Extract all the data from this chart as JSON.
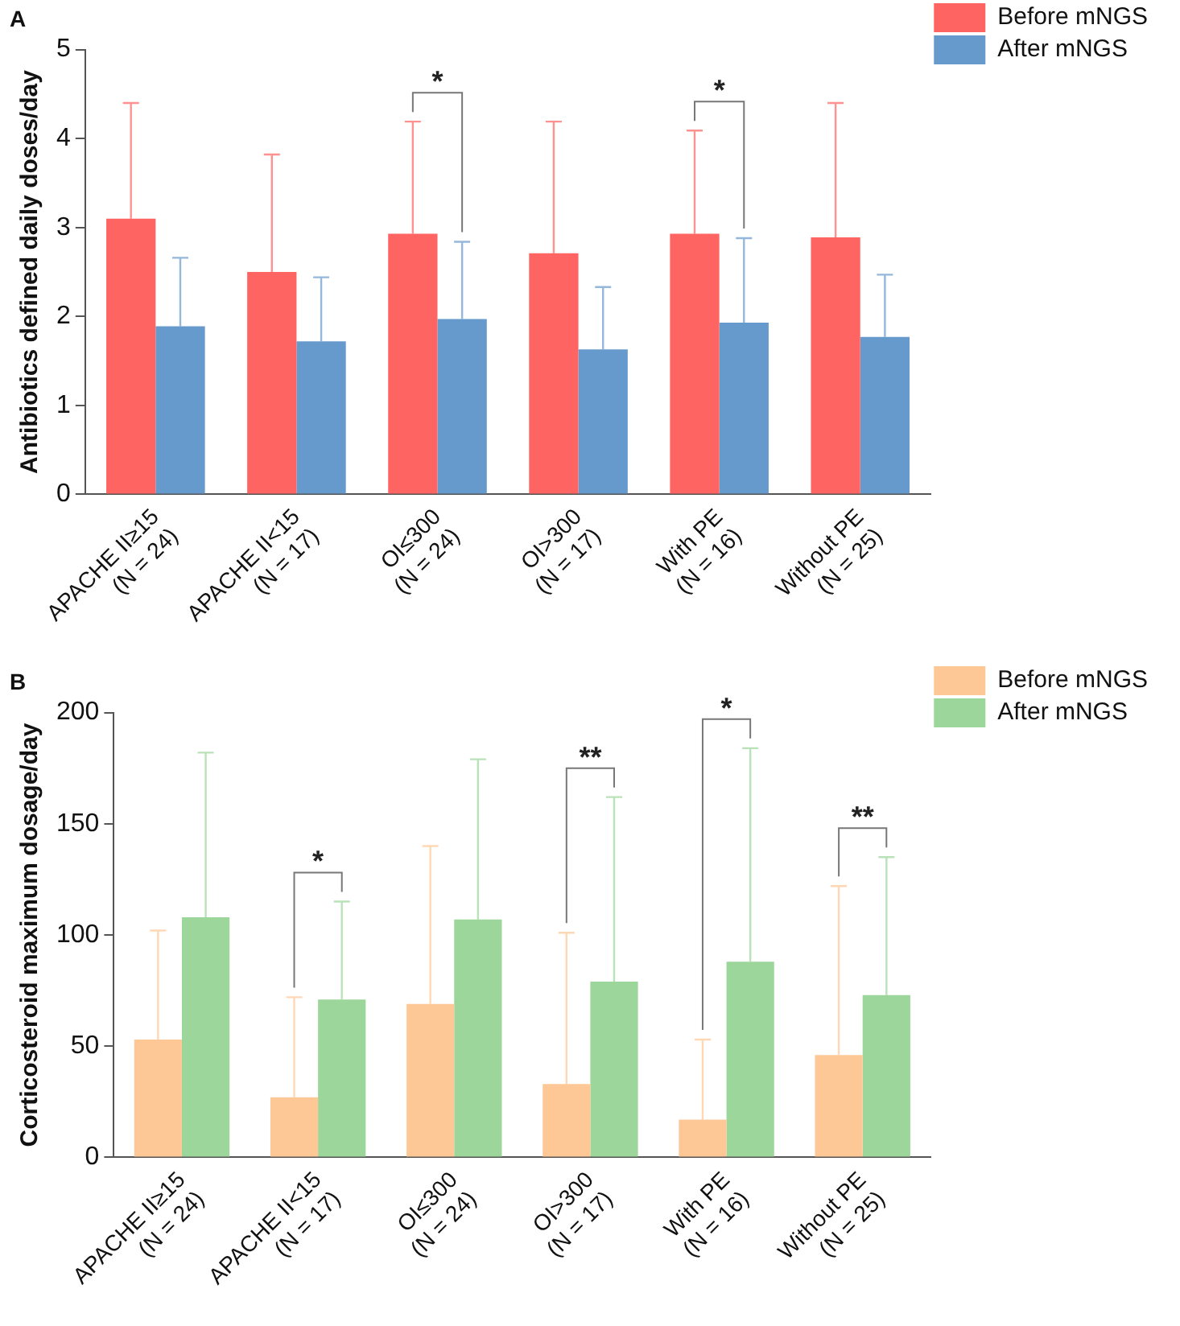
{
  "chart_data": [
    {
      "type": "bar",
      "title": "A",
      "ylabel": "Antibiotics defined daily doses/day",
      "categories": [
        "APACHE II≥15\n(N = 24)",
        "APACHE II<15\n(N = 17)",
        "OI≤300\n(N = 24)",
        "OI>300\n(N = 17)",
        "With PE\n(N = 16)",
        "Without PE\n(N = 25)"
      ],
      "series": [
        {
          "name": "Before mNGS",
          "color": "#fe6461",
          "values": [
            3.1,
            2.5,
            2.93,
            2.71,
            2.93,
            2.89
          ],
          "errors": [
            [
              3.1,
              4.4
            ],
            [
              2.5,
              3.82
            ],
            [
              2.93,
              4.19
            ],
            [
              2.71,
              4.19
            ],
            [
              2.93,
              4.09
            ],
            [
              2.89,
              4.4
            ]
          ]
        },
        {
          "name": "After mNGS",
          "color": "#6699cc",
          "values": [
            1.89,
            1.72,
            1.97,
            1.63,
            1.93,
            1.77
          ],
          "errors": [
            [
              1.89,
              2.66
            ],
            [
              1.72,
              2.44
            ],
            [
              1.97,
              2.84
            ],
            [
              1.63,
              2.33
            ],
            [
              1.93,
              2.88
            ],
            [
              1.77,
              2.47
            ]
          ]
        }
      ],
      "ylim": [
        0,
        5
      ],
      "yticks": [
        0,
        1,
        2,
        3,
        4,
        5
      ],
      "grid": false,
      "legend": "top right",
      "annotations": [
        "*",
        "*"
      ]
    },
    {
      "type": "bar",
      "title": "B",
      "ylabel": "Corticosteroid maximum dosage/day",
      "categories": [
        "APACHE II≥15\n(N = 24)",
        "APACHE II<15\n(N = 17)",
        "OI≤300\n(N = 24)",
        "OI>300\n(N = 17)",
        "With PE\n(N = 16)",
        "Without PE\n(N = 25)"
      ],
      "series": [
        {
          "name": "Before mNGS",
          "color": "#fec896",
          "values": [
            53,
            27,
            69,
            33,
            17,
            46
          ],
          "errors": [
            [
              53,
              102
            ],
            [
              27,
              72
            ],
            [
              69,
              140
            ],
            [
              33,
              101
            ],
            [
              17,
              53
            ],
            [
              46,
              122
            ]
          ]
        },
        {
          "name": "After mNGS",
          "color": "#9dd69b",
          "values": [
            108,
            71,
            107,
            79,
            88,
            73
          ],
          "errors": [
            [
              108,
              182
            ],
            [
              71,
              115
            ],
            [
              107,
              179
            ],
            [
              79,
              162
            ],
            [
              88,
              184
            ],
            [
              73,
              135
            ]
          ]
        }
      ],
      "ylim": [
        0,
        200
      ],
      "yticks": [
        0,
        50,
        100,
        150,
        200
      ],
      "grid": false,
      "legend": "top right",
      "annotations": [
        "*",
        "**",
        "*",
        "**"
      ]
    }
  ]
}
